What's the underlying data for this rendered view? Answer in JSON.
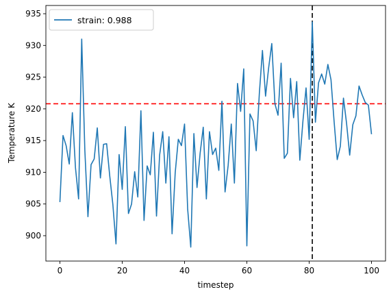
{
  "chart_data": {
    "type": "line",
    "title": "",
    "xlabel": "timestep",
    "ylabel": "Temperature K",
    "xlim": [
      -4.5,
      104.5
    ],
    "ylim": [
      896.0,
      936.3
    ],
    "xticks": [
      0,
      20,
      40,
      60,
      80,
      100
    ],
    "yticks": [
      900,
      905,
      910,
      915,
      920,
      925,
      930,
      935
    ],
    "legend_position": "top-left",
    "grid": false,
    "series": [
      {
        "name": "strain: 0.988",
        "color": "#1f77b4",
        "x": [
          0,
          1,
          2,
          3,
          4,
          5,
          6,
          7,
          8,
          9,
          10,
          11,
          12,
          13,
          14,
          15,
          16,
          17,
          18,
          19,
          20,
          21,
          22,
          23,
          24,
          25,
          26,
          27,
          28,
          29,
          30,
          31,
          32,
          33,
          34,
          35,
          36,
          37,
          38,
          39,
          40,
          41,
          42,
          43,
          44,
          45,
          46,
          47,
          48,
          49,
          50,
          51,
          52,
          53,
          54,
          55,
          56,
          57,
          58,
          59,
          60,
          61,
          62,
          63,
          64,
          65,
          66,
          67,
          68,
          69,
          70,
          71,
          72,
          73,
          74,
          75,
          76,
          77,
          78,
          79,
          80,
          81,
          82,
          83,
          84,
          85,
          86,
          87,
          88,
          89,
          90,
          91,
          92,
          93,
          94,
          95,
          96,
          97,
          98,
          99,
          100
        ],
        "y": [
          905.3,
          915.8,
          914.2,
          911.3,
          919.4,
          910.7,
          905.8,
          931.0,
          913.5,
          903.0,
          911.2,
          912.1,
          917.0,
          909.1,
          914.4,
          914.5,
          909.4,
          904.9,
          898.7,
          912.8,
          907.3,
          917.2,
          903.5,
          905.0,
          910.1,
          906.1,
          919.7,
          902.4,
          911.0,
          909.6,
          916.3,
          903.1,
          912.7,
          916.4,
          908.3,
          915.6,
          900.3,
          909.9,
          915.2,
          914.2,
          917.6,
          904.2,
          898.2,
          916.1,
          907.6,
          913.0,
          917.1,
          905.8,
          916.4,
          912.8,
          913.8,
          910.3,
          921.2,
          906.9,
          911.1,
          917.6,
          908.3,
          924.0,
          919.6,
          926.3,
          898.4,
          919.2,
          918.1,
          913.4,
          922.4,
          929.2,
          922.0,
          926.5,
          930.3,
          920.8,
          919.0,
          927.2,
          912.2,
          913.0,
          924.8,
          918.6,
          924.3,
          911.9,
          918.1,
          923.3,
          915.2,
          933.7,
          917.9,
          924.1,
          925.5,
          923.9,
          927.0,
          924.6,
          918.0,
          912.0,
          914.1,
          921.7,
          917.7,
          912.7,
          917.5,
          918.9,
          923.6,
          922.2,
          921.0,
          920.6,
          916.0
        ]
      }
    ],
    "reference_lines": [
      {
        "orientation": "horizontal",
        "value": 920.8,
        "color": "#ff0000",
        "style": "dashed"
      },
      {
        "orientation": "vertical",
        "value": 81,
        "color": "#000000",
        "style": "dashed"
      }
    ]
  }
}
